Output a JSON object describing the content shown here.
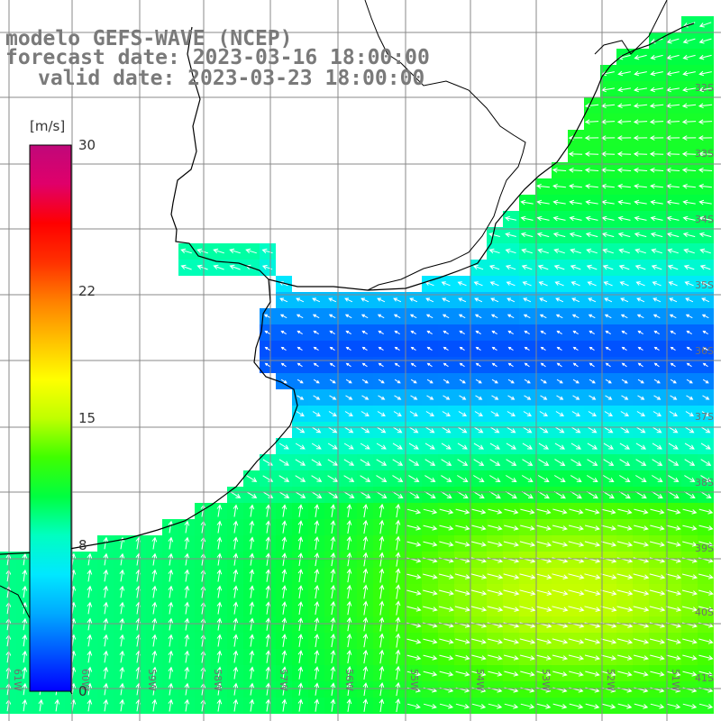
{
  "title": {
    "model": "modelo GEFS-WAVE (NCEP)",
    "forecast": "forecast date: 2023-03-16 18:00:00",
    "valid": "valid date: 2023-03-23 18:00:00"
  },
  "colorbar": {
    "unit": "[m/s]",
    "ticks": [
      "30",
      "22",
      "15",
      "8",
      "0"
    ],
    "tick_values": [
      30,
      22,
      15,
      8,
      0
    ],
    "min": 0,
    "max": 30,
    "colors": [
      "#0000ff",
      "#0055ff",
      "#00aaff",
      "#00e8ff",
      "#00ffc0",
      "#00ff40",
      "#40ff00",
      "#c0ff00",
      "#ffff00",
      "#ffc000",
      "#ff8000",
      "#ff3000",
      "#ff0000",
      "#e0006a",
      "#c0087a"
    ]
  },
  "map": {
    "lat_labels": [
      "32S",
      "33S",
      "34S",
      "35S",
      "36S",
      "37S",
      "38S",
      "39S",
      "40S",
      "41S"
    ],
    "lon_labels": [
      "61W",
      "60W",
      "59W",
      "58W",
      "57W",
      "56W",
      "55W",
      "54W",
      "53W",
      "52W",
      "51W"
    ],
    "land_color": "#ffffff",
    "coast_color": "#000000",
    "grid_color": "#888888",
    "arrow_color": "#ffffff"
  }
}
